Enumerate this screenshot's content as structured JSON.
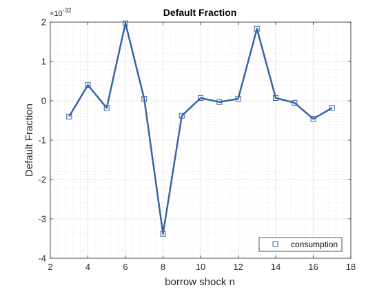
{
  "chart_data": {
    "type": "line",
    "title": "Default Fraction",
    "xlabel": "borrow shock n",
    "ylabel": "Default Fraction",
    "y_exponent_base": "×10",
    "y_exponent_power": "-32",
    "xlim": [
      2,
      18
    ],
    "ylim": [
      -4,
      2
    ],
    "x_ticks": [
      2,
      4,
      6,
      8,
      10,
      12,
      14,
      16,
      18
    ],
    "y_ticks": [
      -4,
      -3,
      -2,
      -1,
      0,
      1,
      2
    ],
    "grid": true,
    "minor_grid": true,
    "legend_location": "bottom-right",
    "x": [
      3,
      4,
      5,
      6,
      7,
      8,
      9,
      10,
      11,
      12,
      13,
      14,
      15,
      16,
      17
    ],
    "series": [
      {
        "name": "consumption",
        "values": [
          -0.4,
          0.4,
          -0.18,
          1.97,
          0.05,
          -3.38,
          -0.38,
          0.07,
          -0.03,
          0.05,
          1.83,
          0.07,
          -0.05,
          -0.46,
          -0.18
        ],
        "color": "#3465a4",
        "marker": "square"
      }
    ]
  }
}
